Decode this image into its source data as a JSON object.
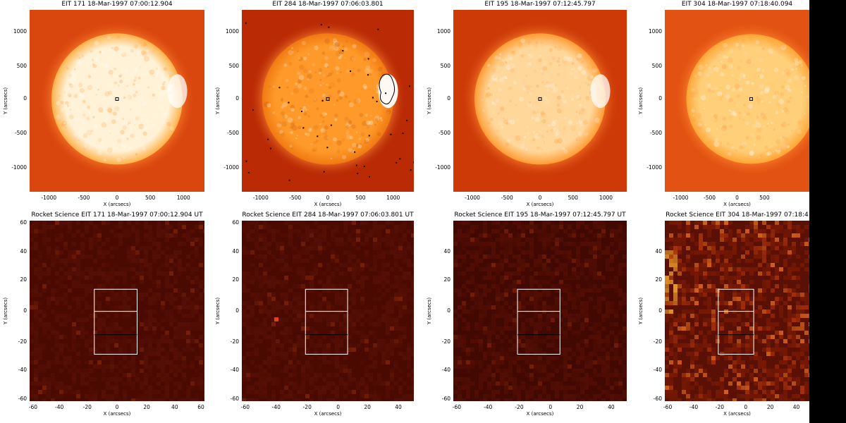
{
  "top_panels": [
    {
      "title": "EIT 171 18-Mar-1997 07:00:12.904",
      "x_label": "X (arcsecs)",
      "y_label": "Y (arcsecs)",
      "x_ticks": [
        "-1000",
        "-500",
        "0",
        "500",
        "1000"
      ],
      "y_ticks": [
        "1000",
        "500",
        "0",
        "-500",
        "-1000"
      ],
      "bg": "#d9460e",
      "disk_inner": "#fff2d6",
      "disk_outer": "#ffb14a",
      "variant": "171"
    },
    {
      "title": "EIT 284 18-Mar-1997 07:06:03.801",
      "x_label": "X (arcsecs)",
      "y_label": "Y (arcsecs)",
      "x_ticks": [
        "-1000",
        "-500",
        "0",
        "500",
        "1000"
      ],
      "y_ticks": [
        "1000",
        "500",
        "0",
        "-500",
        "-1000"
      ],
      "bg": "#b92a05",
      "disk_inner": "#ff9a2a",
      "disk_outer": "#f07a12",
      "variant": "284"
    },
    {
      "title": "EIT 195 18-Mar-1997 07:12:45.797",
      "x_label": "X (arcsecs)",
      "y_label": "Y (arcsecs)",
      "x_ticks": [
        "-1000",
        "-500",
        "0",
        "500",
        "1000"
      ],
      "y_ticks": [
        "1000",
        "500",
        "0",
        "-500",
        "-1000"
      ],
      "bg": "#cd3a08",
      "disk_inner": "#ffd79a",
      "disk_outer": "#ff9c34",
      "variant": "195"
    },
    {
      "title": "EIT 304 18-Mar-1997 07:18:40.094",
      "x_label": "X (arcsecs)",
      "y_label": "Y (arcsecs)",
      "x_ticks": [
        "-1000",
        "-500",
        "0",
        "500"
      ],
      "y_ticks": [
        "1000",
        "500",
        "0",
        "-500",
        "-1000"
      ],
      "bg": "#e25212",
      "disk_inner": "#ffcf7a",
      "disk_outer": "#ffa535",
      "variant": "304"
    }
  ],
  "bottom_panels": [
    {
      "title": "Rocket Science EIT 171 18-Mar-1997 07:00:12.904 UT",
      "x_label": "X (arcsecs)",
      "y_label": "Y (arcsecs)",
      "x_ticks": [
        "-60",
        "-40",
        "-20",
        "0",
        "20",
        "40",
        "60"
      ],
      "y_ticks": [
        "60",
        "40",
        "20",
        "0",
        "-20",
        "-40",
        "-60"
      ],
      "bg": "#4a0a02",
      "variant": "171"
    },
    {
      "title": "Rocket Science EIT 284 18-Mar-1997 07:06:03.801 UT",
      "x_label": "X (arcsecs)",
      "y_label": "Y (arcsecs)",
      "x_ticks": [
        "-60",
        "-40",
        "-20",
        "0",
        "20",
        "40"
      ],
      "y_ticks": [
        "60",
        "40",
        "20",
        "0",
        "-20",
        "-40",
        "-60"
      ],
      "bg": "#4a0a02",
      "variant": "284"
    },
    {
      "title": "Rocket Science EIT 195 18-Mar-1997 07:12:45.797 UT",
      "x_label": "X (arcsecs)",
      "y_label": "Y (arcsecs)",
      "x_ticks": [
        "-60",
        "-40",
        "-20",
        "0",
        "20",
        "40"
      ],
      "y_ticks": [
        "40",
        "20",
        "0",
        "-20",
        "-40",
        "-60"
      ],
      "bg": "#420802",
      "variant": "195"
    },
    {
      "title": "Rocket Science EIT 304 18-Mar-1997 07:18:4",
      "x_label": "X (arcsecs)",
      "y_label": "Y (arcsecs)",
      "x_ticks": [
        "-60",
        "-40",
        "-20",
        "0",
        "20",
        "40"
      ],
      "y_ticks": [
        "40",
        "20",
        "0",
        "-20",
        "-40",
        "-60"
      ],
      "bg": "#5a1004",
      "variant": "304"
    }
  ]
}
